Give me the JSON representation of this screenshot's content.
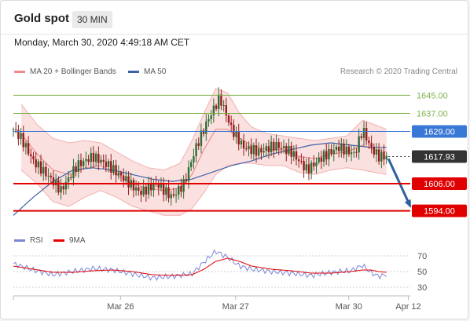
{
  "header": {
    "title": "Gold spot",
    "timeframe": "30 MIN"
  },
  "timestamp": "Monday, March 30, 2020 4:49:18 AM CET",
  "legend_main": [
    {
      "label": "MA 20 + Bollinger Bands",
      "color": "#f08a8a"
    },
    {
      "label": "MA 50",
      "color": "#3d62a8"
    }
  ],
  "legend_rsi": [
    {
      "label": "RSI",
      "color": "#7b86d8"
    },
    {
      "label": "9MA",
      "color": "#e60000"
    }
  ],
  "credit": "Research © 2020 Trading Central",
  "colors": {
    "resistance": "#7fb24b",
    "pivot": "#3a78d6",
    "support": "#e00000",
    "last": "#333333",
    "bull": "#2d6e36",
    "bear": "#9a1a1a",
    "arrow": "#2e5f9e"
  },
  "chart_data": [
    {
      "type": "line",
      "title": "Gold spot 30 MIN",
      "ylim": [
        1588,
        1651
      ],
      "x_ticks": [
        {
          "x": 0.27,
          "label": "Mar 26"
        },
        {
          "x": 0.56,
          "label": "Mar 27"
        },
        {
          "x": 0.845,
          "label": "Mar 30"
        },
        {
          "x": 0.995,
          "label": "Apr 12"
        }
      ],
      "levels": [
        {
          "label": "1645.00",
          "value": 1645.0,
          "kind": "resistance"
        },
        {
          "label": "1637.00",
          "value": 1637.0,
          "kind": "resistance"
        },
        {
          "label": "1629.00",
          "value": 1629.0,
          "kind": "pivot"
        },
        {
          "label": "1617.93",
          "value": 1617.93,
          "kind": "last"
        },
        {
          "label": "1606.00",
          "value": 1606.0,
          "kind": "support"
        },
        {
          "label": "1594.00",
          "value": 1594.0,
          "kind": "support"
        }
      ],
      "price_path": [
        [
          0.0,
          1630
        ],
        [
          0.02,
          1626
        ],
        [
          0.05,
          1616
        ],
        [
          0.09,
          1609
        ],
        [
          0.12,
          1603
        ],
        [
          0.16,
          1614
        ],
        [
          0.2,
          1618
        ],
        [
          0.24,
          1614
        ],
        [
          0.28,
          1608
        ],
        [
          0.32,
          1602
        ],
        [
          0.36,
          1606
        ],
        [
          0.4,
          1600
        ],
        [
          0.43,
          1606
        ],
        [
          0.46,
          1622
        ],
        [
          0.49,
          1634
        ],
        [
          0.52,
          1644
        ],
        [
          0.55,
          1630
        ],
        [
          0.58,
          1622
        ],
        [
          0.62,
          1620
        ],
        [
          0.66,
          1623
        ],
        [
          0.7,
          1620
        ],
        [
          0.74,
          1612
        ],
        [
          0.78,
          1618
        ],
        [
          0.82,
          1622
        ],
        [
          0.86,
          1619
        ],
        [
          0.88,
          1630
        ],
        [
          0.9,
          1622
        ],
        [
          0.92,
          1618
        ],
        [
          0.94,
          1617.93
        ]
      ],
      "ma20": [
        [
          0.02,
          1628
        ],
        [
          0.06,
          1619
        ],
        [
          0.1,
          1612
        ],
        [
          0.14,
          1610
        ],
        [
          0.18,
          1613
        ],
        [
          0.22,
          1614
        ],
        [
          0.26,
          1610
        ],
        [
          0.3,
          1606
        ],
        [
          0.34,
          1604
        ],
        [
          0.38,
          1603
        ],
        [
          0.42,
          1604
        ],
        [
          0.45,
          1610
        ],
        [
          0.48,
          1621
        ],
        [
          0.51,
          1630
        ],
        [
          0.54,
          1630
        ],
        [
          0.57,
          1626
        ],
        [
          0.6,
          1623
        ],
        [
          0.64,
          1621
        ],
        [
          0.68,
          1621
        ],
        [
          0.72,
          1618
        ],
        [
          0.76,
          1617
        ],
        [
          0.8,
          1619
        ],
        [
          0.84,
          1620
        ],
        [
          0.88,
          1623
        ],
        [
          0.91,
          1621
        ],
        [
          0.94,
          1620
        ]
      ],
      "bb_upper": [
        [
          0.02,
          1641
        ],
        [
          0.06,
          1632
        ],
        [
          0.1,
          1626
        ],
        [
          0.14,
          1624
        ],
        [
          0.18,
          1625
        ],
        [
          0.22,
          1624
        ],
        [
          0.26,
          1620
        ],
        [
          0.3,
          1616
        ],
        [
          0.34,
          1613
        ],
        [
          0.38,
          1612
        ],
        [
          0.42,
          1615
        ],
        [
          0.45,
          1625
        ],
        [
          0.48,
          1637
        ],
        [
          0.51,
          1648
        ],
        [
          0.54,
          1646
        ],
        [
          0.57,
          1637
        ],
        [
          0.6,
          1631
        ],
        [
          0.64,
          1628
        ],
        [
          0.68,
          1627
        ],
        [
          0.72,
          1626
        ],
        [
          0.76,
          1625
        ],
        [
          0.8,
          1626
        ],
        [
          0.84,
          1627
        ],
        [
          0.88,
          1634
        ],
        [
          0.91,
          1632
        ],
        [
          0.94,
          1630
        ]
      ],
      "bb_lower": [
        [
          0.02,
          1612
        ],
        [
          0.06,
          1606
        ],
        [
          0.1,
          1598
        ],
        [
          0.14,
          1596
        ],
        [
          0.18,
          1600
        ],
        [
          0.22,
          1603
        ],
        [
          0.26,
          1600
        ],
        [
          0.3,
          1596
        ],
        [
          0.34,
          1594
        ],
        [
          0.38,
          1592
        ],
        [
          0.42,
          1592
        ],
        [
          0.45,
          1595
        ],
        [
          0.48,
          1602
        ],
        [
          0.51,
          1610
        ],
        [
          0.54,
          1614
        ],
        [
          0.57,
          1615
        ],
        [
          0.6,
          1615
        ],
        [
          0.64,
          1614
        ],
        [
          0.68,
          1614
        ],
        [
          0.72,
          1611
        ],
        [
          0.76,
          1610
        ],
        [
          0.8,
          1612
        ],
        [
          0.84,
          1613
        ],
        [
          0.88,
          1612
        ],
        [
          0.91,
          1611
        ],
        [
          0.94,
          1610
        ]
      ],
      "ma50": [
        [
          0.0,
          1592
        ],
        [
          0.05,
          1600
        ],
        [
          0.1,
          1607
        ],
        [
          0.15,
          1612
        ],
        [
          0.2,
          1613
        ],
        [
          0.25,
          1612
        ],
        [
          0.3,
          1610
        ],
        [
          0.35,
          1608
        ],
        [
          0.4,
          1607
        ],
        [
          0.45,
          1608
        ],
        [
          0.5,
          1611
        ],
        [
          0.55,
          1614
        ],
        [
          0.6,
          1616
        ],
        [
          0.65,
          1619
        ],
        [
          0.7,
          1621
        ],
        [
          0.75,
          1623
        ],
        [
          0.8,
          1624
        ],
        [
          0.85,
          1623
        ],
        [
          0.9,
          1622
        ],
        [
          0.94,
          1622
        ]
      ],
      "projection": {
        "from": [
          0.945,
          1617
        ],
        "to": [
          1.0,
          1596
        ]
      }
    },
    {
      "type": "line",
      "title": "RSI",
      "ylim": [
        25,
        78
      ],
      "y_ticks": [
        70,
        50,
        30
      ],
      "rsi": [
        [
          0.0,
          60
        ],
        [
          0.05,
          52
        ],
        [
          0.1,
          46
        ],
        [
          0.15,
          50
        ],
        [
          0.2,
          54
        ],
        [
          0.25,
          52
        ],
        [
          0.3,
          47
        ],
        [
          0.35,
          42
        ],
        [
          0.4,
          44
        ],
        [
          0.45,
          47
        ],
        [
          0.48,
          62
        ],
        [
          0.51,
          76
        ],
        [
          0.54,
          68
        ],
        [
          0.57,
          57
        ],
        [
          0.6,
          53
        ],
        [
          0.65,
          50
        ],
        [
          0.7,
          48
        ],
        [
          0.75,
          45
        ],
        [
          0.8,
          49
        ],
        [
          0.85,
          51
        ],
        [
          0.88,
          58
        ],
        [
          0.9,
          49
        ],
        [
          0.92,
          44
        ],
        [
          0.94,
          46
        ]
      ],
      "ma9": [
        [
          0.0,
          57
        ],
        [
          0.05,
          53
        ],
        [
          0.1,
          49
        ],
        [
          0.15,
          49
        ],
        [
          0.2,
          51
        ],
        [
          0.25,
          52
        ],
        [
          0.3,
          50
        ],
        [
          0.35,
          46
        ],
        [
          0.4,
          45
        ],
        [
          0.45,
          46
        ],
        [
          0.48,
          53
        ],
        [
          0.51,
          63
        ],
        [
          0.54,
          67
        ],
        [
          0.57,
          63
        ],
        [
          0.6,
          57
        ],
        [
          0.65,
          53
        ],
        [
          0.7,
          51
        ],
        [
          0.75,
          48
        ],
        [
          0.8,
          48
        ],
        [
          0.85,
          50
        ],
        [
          0.88,
          52
        ],
        [
          0.9,
          52
        ],
        [
          0.92,
          50
        ],
        [
          0.94,
          49
        ]
      ]
    }
  ]
}
